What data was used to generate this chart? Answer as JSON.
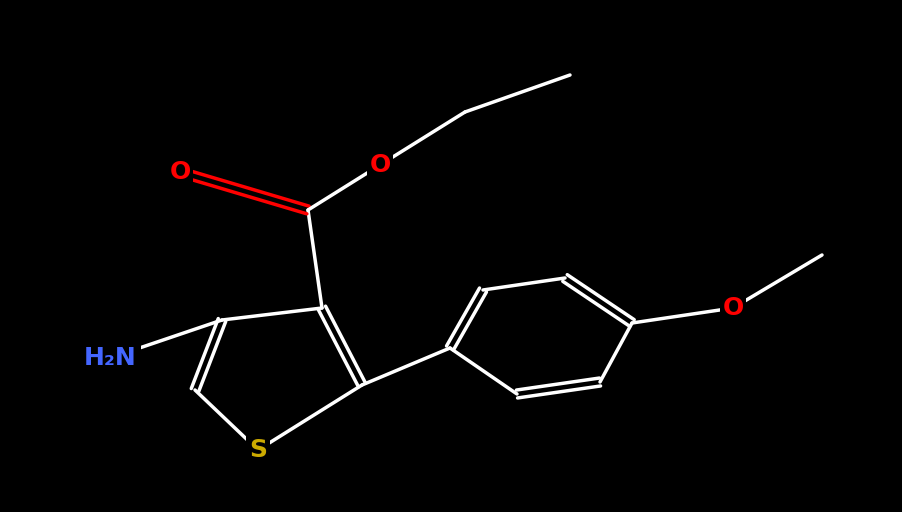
{
  "background_color": "#000000",
  "bond_color": "#ffffff",
  "bond_width": 2.5,
  "atom_colors": {
    "O": "#ff0000",
    "S": "#ccaa00",
    "N": "#4466ff",
    "C": "#ffffff",
    "H": "#ffffff"
  },
  "font_size_atoms": 16,
  "font_size_labels": 14
}
